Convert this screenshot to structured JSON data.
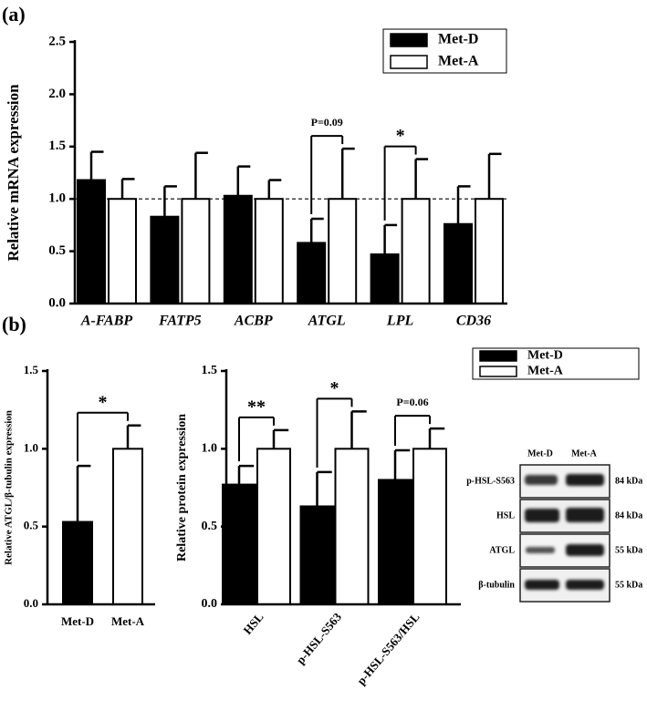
{
  "panel_labels": [
    "(a)",
    "(b)"
  ],
  "chart_data": [
    {
      "type": "bar",
      "ylabel": "Relative mRNA expression",
      "categories": [
        "A-FABP",
        "FATP5",
        "ACBP",
        "ATGL",
        "LPL",
        "CD36"
      ],
      "series": [
        {
          "name": "Met-D",
          "color": "#000000",
          "values": [
            1.18,
            0.83,
            1.03,
            0.58,
            0.47,
            0.76
          ],
          "errors": [
            0.27,
            0.29,
            0.28,
            0.23,
            0.28,
            0.36
          ]
        },
        {
          "name": "Met-A",
          "color": "#ffffff",
          "values": [
            1.0,
            1.0,
            1.0,
            1.0,
            1.0,
            1.0
          ],
          "errors": [
            0.19,
            0.44,
            0.18,
            0.48,
            0.38,
            0.43
          ]
        }
      ],
      "ylim": [
        0,
        2.5
      ],
      "yticks": [
        {
          "value": 0,
          "label": "0.0"
        },
        {
          "value": 0.5,
          "label": "0.5"
        },
        {
          "value": 1,
          "label": "1.0"
        },
        {
          "value": 1.5,
          "label": "1.5"
        },
        {
          "value": 2,
          "label": "2.0"
        },
        {
          "value": 2.5,
          "label": "2.5"
        }
      ],
      "reference_line": 1,
      "legend": "upper right",
      "annotations": [
        {
          "text": "P=0.09",
          "x": "ATGL"
        },
        {
          "text": "*",
          "x": "LPL"
        }
      ]
    },
    {
      "type": "bar",
      "ylabel": "Relative ATGL/β-tubulin expression",
      "categories": [
        "Met-D",
        "Met-A"
      ],
      "values": [
        0.53,
        1.0
      ],
      "errors": [
        0.36,
        0.15
      ],
      "colors": [
        "#000000",
        "#ffffff"
      ],
      "ylim": [
        0,
        1.5
      ],
      "yticks": [
        {
          "value": 0,
          "label": "0.0"
        },
        {
          "value": 0.5,
          "label": "0.5"
        },
        {
          "value": 1,
          "label": "1.0"
        },
        {
          "value": 1.5,
          "label": "1.5"
        }
      ],
      "annotations": [
        {
          "text": "*"
        }
      ]
    },
    {
      "type": "bar",
      "ylabel": "Relative protein expression",
      "categories": [
        "HSL",
        "p-HSL-S563",
        "p-HSL-S563/HSL"
      ],
      "series": [
        {
          "name": "Met-D",
          "color": "#000000",
          "values": [
            0.77,
            0.63,
            0.8
          ],
          "errors": [
            0.12,
            0.22,
            0.19
          ]
        },
        {
          "name": "Met-A",
          "color": "#ffffff",
          "values": [
            1.0,
            1.0,
            1.0
          ],
          "errors": [
            0.12,
            0.24,
            0.13
          ]
        }
      ],
      "ylim": [
        0,
        1.5
      ],
      "yticks": [
        {
          "value": 0,
          "label": "0.0"
        },
        {
          "value": 0.5,
          "label": "0.5"
        },
        {
          "value": 1,
          "label": "1.0"
        },
        {
          "value": 1.5,
          "label": "1.5"
        }
      ],
      "legend": "upper right",
      "annotations": [
        {
          "text": "**",
          "x": "HSL"
        },
        {
          "text": "*",
          "x": "p-HSL-S563"
        },
        {
          "text": "P=0.06",
          "x": "p-HSL-S563/HSL"
        }
      ]
    }
  ],
  "blot": {
    "lanes": [
      "Met-D",
      "Met-A"
    ],
    "rows": [
      {
        "label": "p-HSL-S563",
        "size": "84 kDa"
      },
      {
        "label": "HSL",
        "size": "84 kDa"
      },
      {
        "label": "ATGL",
        "size": "55 kDa"
      },
      {
        "label": "β-tubulin",
        "size": "55 kDa"
      }
    ]
  }
}
